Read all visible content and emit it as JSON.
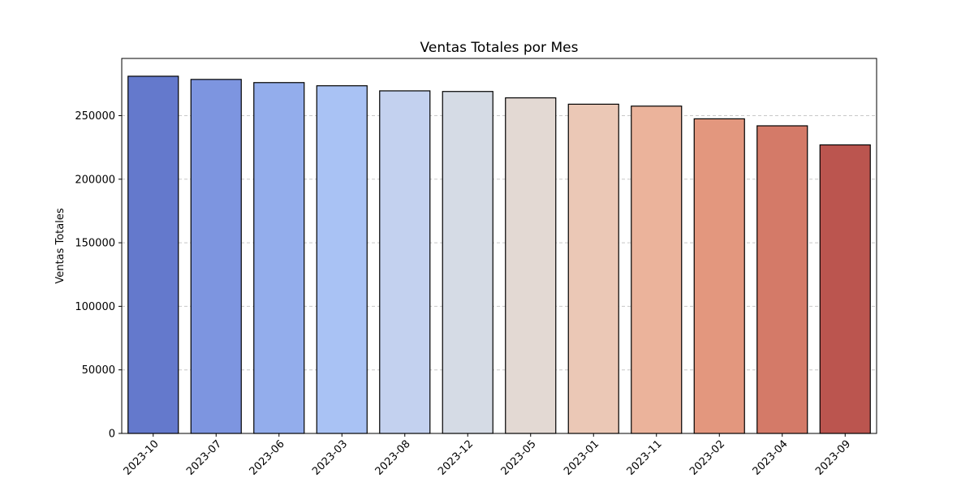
{
  "chart_data": {
    "type": "bar",
    "title": "Ventas Totales por Mes",
    "xlabel": "",
    "ylabel": "Ventas Totales",
    "categories": [
      "2023-10",
      "2023-07",
      "2023-06",
      "2023-03",
      "2023-08",
      "2023-12",
      "2023-05",
      "2023-01",
      "2023-11",
      "2023-02",
      "2023-04",
      "2023-09"
    ],
    "values": [
      281000,
      278500,
      276000,
      273500,
      269500,
      269000,
      264000,
      259000,
      257500,
      247500,
      242000,
      227000
    ],
    "colors": [
      "#6479cc",
      "#7d95e0",
      "#93adec",
      "#a9c2f4",
      "#c3d1ef",
      "#d5dbe5",
      "#e3d9d3",
      "#ebc8b6",
      "#ebb39b",
      "#e3977e",
      "#d47a68",
      "#bb554f"
    ],
    "yticks": [
      0,
      50000,
      100000,
      150000,
      200000,
      250000
    ],
    "ylim": [
      0,
      295000
    ],
    "grid": "y-dashed",
    "legend": "none"
  }
}
